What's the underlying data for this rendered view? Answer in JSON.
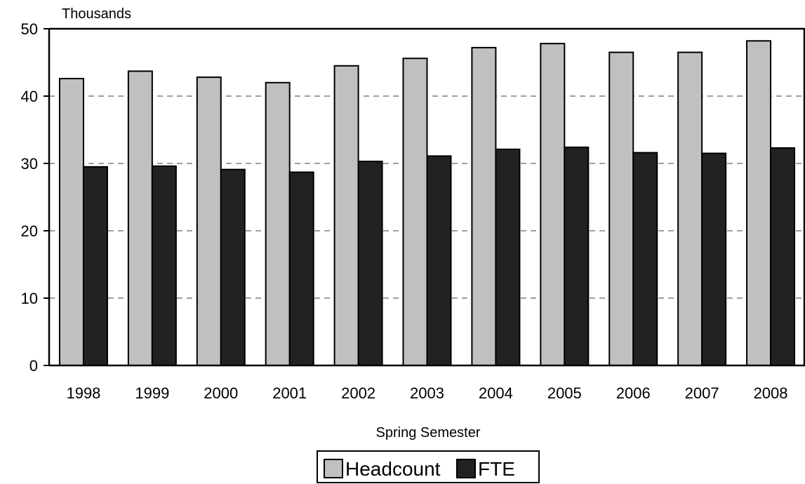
{
  "chart_data": {
    "type": "bar",
    "title": "",
    "units_label": "Thousands",
    "xlabel": "Spring Semester",
    "ylabel": "",
    "ylim": [
      0,
      50
    ],
    "yticks": [
      0,
      10,
      20,
      30,
      40,
      50
    ],
    "grid": "horizontal dashed",
    "legend_position": "bottom-center",
    "categories": [
      "1998",
      "1999",
      "2000",
      "2001",
      "2002",
      "2003",
      "2004",
      "2005",
      "2006",
      "2007",
      "2008"
    ],
    "series": [
      {
        "name": "Headcount",
        "color": "#c0c0c0",
        "values": [
          42.6,
          43.7,
          42.8,
          42.0,
          44.5,
          45.6,
          47.2,
          47.8,
          46.5,
          46.5,
          48.2
        ]
      },
      {
        "name": "FTE",
        "color": "#222222",
        "values": [
          29.5,
          29.6,
          29.1,
          28.7,
          30.3,
          31.1,
          32.1,
          32.4,
          31.6,
          31.5,
          32.3
        ]
      }
    ]
  }
}
